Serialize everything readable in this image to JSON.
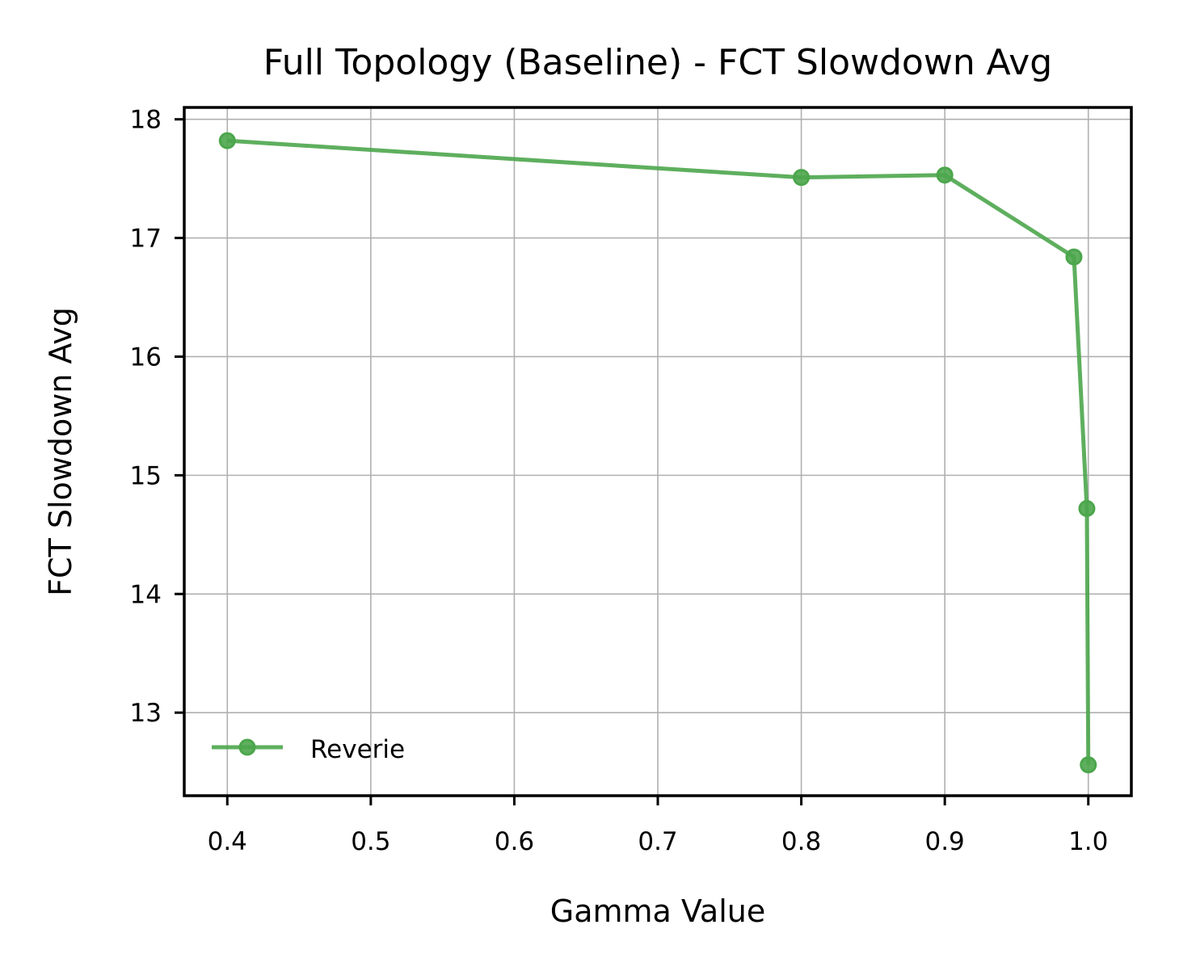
{
  "chart_data": {
    "type": "line",
    "title": "Full Topology (Baseline) - FCT Slowdown Avg",
    "xlabel": "Gamma Value",
    "ylabel": "FCT Slowdown Avg",
    "xlim": [
      0.37,
      1.03
    ],
    "ylim": [
      12.3,
      18.1
    ],
    "xticks": [
      0.4,
      0.5,
      0.6,
      0.7,
      0.8,
      0.9,
      1.0
    ],
    "xtick_labels": [
      "0.4",
      "0.5",
      "0.6",
      "0.7",
      "0.8",
      "0.9",
      "1.0"
    ],
    "yticks": [
      13,
      14,
      15,
      16,
      17,
      18
    ],
    "ytick_labels": [
      "13",
      "14",
      "15",
      "16",
      "17",
      "18"
    ],
    "grid": true,
    "legend_position": "lower-left",
    "series": [
      {
        "name": "Reverie",
        "color": "#4ca64c",
        "marker": "circle",
        "x": [
          0.4,
          0.8,
          0.9,
          0.99,
          0.999,
          1.0
        ],
        "y": [
          17.82,
          17.51,
          17.53,
          16.84,
          14.72,
          12.56
        ]
      }
    ]
  }
}
